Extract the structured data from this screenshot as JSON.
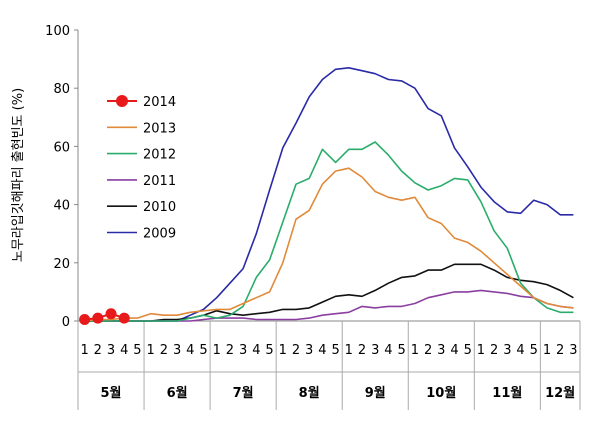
{
  "chart_data": {
    "type": "line",
    "ylabel": "노무라입깃해파리 출현빈도 (%)",
    "ylim": [
      0,
      100
    ],
    "yticks": [
      "0",
      "20",
      "40",
      "60",
      "80",
      "100"
    ],
    "grid": false,
    "legend_position": "upper-left",
    "months": [
      {
        "label": "5월",
        "weeks": [
          "1",
          "2",
          "3",
          "4",
          "5"
        ]
      },
      {
        "label": "6월",
        "weeks": [
          "1",
          "2",
          "3",
          "4",
          "5"
        ]
      },
      {
        "label": "7월",
        "weeks": [
          "1",
          "2",
          "3",
          "4",
          "5"
        ]
      },
      {
        "label": "8월",
        "weeks": [
          "1",
          "2",
          "3",
          "4",
          "5"
        ]
      },
      {
        "label": "9월",
        "weeks": [
          "1",
          "2",
          "3",
          "4",
          "5"
        ]
      },
      {
        "label": "10월",
        "weeks": [
          "1",
          "2",
          "3",
          "4",
          "5"
        ]
      },
      {
        "label": "11월",
        "weeks": [
          "1",
          "2",
          "3",
          "4",
          "5"
        ]
      },
      {
        "label": "12월",
        "weeks": [
          "1",
          "2",
          "3"
        ]
      }
    ],
    "series": [
      {
        "name": "2014",
        "color": "#e8191a",
        "style": "marker",
        "values": [
          0.5,
          1,
          2.5,
          1
        ]
      },
      {
        "name": "2013",
        "color": "#e08a3a",
        "style": "line",
        "values": [
          0,
          0.5,
          0.5,
          1,
          1,
          2.5,
          2,
          2,
          3,
          3.5,
          4,
          4,
          6,
          8,
          10,
          20,
          35,
          38,
          47,
          51.5,
          52.5,
          49.5,
          44.5,
          42.5,
          41.5,
          42.5,
          35.5,
          33.5,
          28.5,
          27,
          24,
          20,
          16,
          12,
          8,
          6,
          5,
          4.5
        ]
      },
      {
        "name": "2012",
        "color": "#2aad6b",
        "style": "line",
        "values": [
          0,
          0,
          0,
          0,
          0,
          0,
          0,
          0,
          1,
          2,
          1,
          2,
          5,
          15,
          21,
          34,
          47,
          49,
          59,
          54.5,
          59,
          59,
          61.5,
          57,
          51.5,
          47.5,
          45,
          46.5,
          49,
          48.5,
          41,
          31,
          25,
          13,
          8,
          4.5,
          3,
          3
        ]
      },
      {
        "name": "2011",
        "color": "#8a3fa0",
        "style": "line",
        "values": [
          0,
          0,
          0,
          0,
          0,
          0,
          0,
          0,
          0,
          0.5,
          1,
          1,
          1,
          0.5,
          0.5,
          0.5,
          0.5,
          1,
          2,
          2.5,
          3,
          5,
          4.5,
          5,
          5,
          6,
          8,
          9,
          10,
          10,
          10.5,
          10,
          9.5,
          8.5,
          8,
          6,
          5,
          4.5
        ]
      },
      {
        "name": "2010",
        "color": "#111111",
        "style": "line",
        "values": [
          0,
          0,
          0,
          0,
          0,
          0,
          0.5,
          0.5,
          1,
          2,
          3.5,
          2.5,
          2,
          2.5,
          3,
          4,
          4,
          4.5,
          6.5,
          8.5,
          9,
          8.5,
          10.5,
          13,
          15,
          15.5,
          17.5,
          17.5,
          19.5,
          19.5,
          19.5,
          17.5,
          15,
          14,
          13.5,
          12.5,
          10.5,
          8
        ]
      },
      {
        "name": "2009",
        "color": "#2a2aa8",
        "style": "line",
        "values": [
          0,
          0,
          0,
          0,
          0,
          0,
          0,
          0,
          2,
          4,
          8,
          13,
          18,
          30,
          45,
          59.5,
          68,
          77,
          83,
          86.5,
          87,
          86,
          85,
          83,
          82.5,
          80,
          73,
          70.5,
          59.5,
          53,
          46,
          41,
          37.5,
          37,
          41.5,
          40,
          36.5,
          36.5
        ]
      }
    ]
  }
}
